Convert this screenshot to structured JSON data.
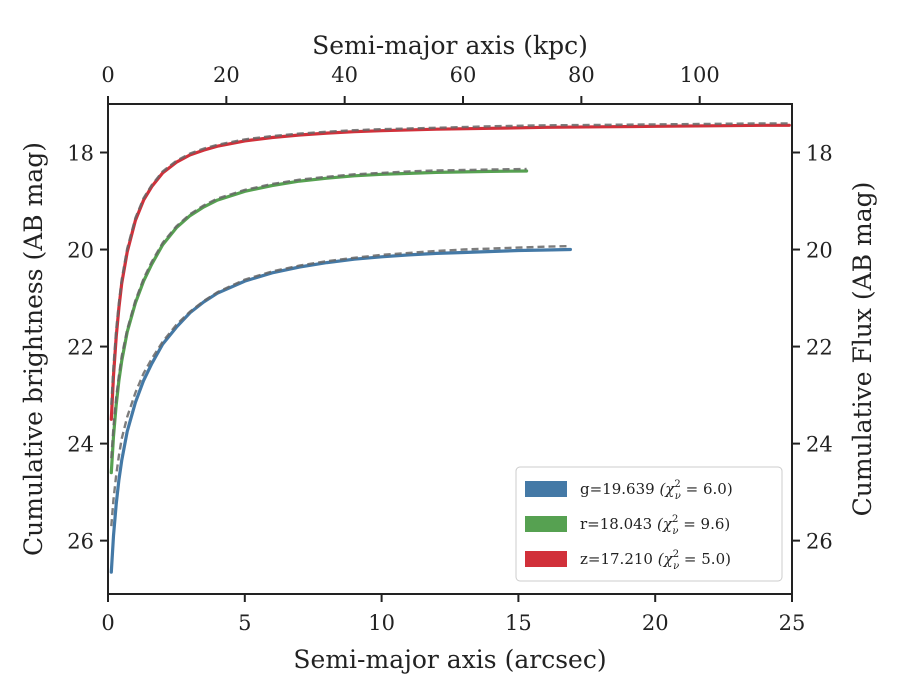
{
  "chart_data": {
    "type": "line",
    "xlabel": "Semi-major axis (arcsec)",
    "ylabel": "Cumulative brightness (AB mag)",
    "top_xlabel": "Semi-major axis (kpc)",
    "right_ylabel": "Cumulative Flux (AB mag)",
    "xlim": [
      0,
      25
    ],
    "ylim": [
      27.1,
      17.0
    ],
    "y_inverted": true,
    "top_xlim": [
      0,
      115.6
    ],
    "x_ticks": [
      0,
      5,
      10,
      15,
      20,
      25
    ],
    "x_tick_labels": [
      "0",
      "5",
      "10",
      "15",
      "20",
      "25"
    ],
    "y_ticks": [
      18,
      20,
      22,
      24,
      26
    ],
    "y_tick_labels": [
      "18",
      "20",
      "22",
      "24",
      "26"
    ],
    "top_x_ticks": [
      0,
      20,
      40,
      60,
      80,
      100
    ],
    "top_x_tick_labels": [
      "0",
      "20",
      "40",
      "60",
      "80",
      "100"
    ],
    "grid": false,
    "legend_placement": "lower-right",
    "series": [
      {
        "name": "g=19.639",
        "chi_label": "(χ",
        "chi_sub": "ν",
        "chi_sup": "2",
        "chi_value": " = 6.0)",
        "color": "#4479a6",
        "x": [
          0.12,
          0.2,
          0.3,
          0.4,
          0.5,
          0.7,
          1.0,
          1.3,
          1.6,
          2.0,
          2.5,
          3.0,
          3.5,
          4.0,
          5.0,
          6.0,
          7.0,
          8.0,
          9.0,
          10.0,
          11.0,
          12.0,
          13.0,
          14.0,
          15.0,
          16.0,
          16.9
        ],
        "y": [
          26.65,
          25.9,
          25.25,
          24.75,
          24.35,
          23.75,
          23.15,
          22.7,
          22.35,
          21.95,
          21.6,
          21.3,
          21.08,
          20.9,
          20.65,
          20.48,
          20.36,
          20.27,
          20.2,
          20.15,
          20.11,
          20.08,
          20.06,
          20.04,
          20.02,
          20.01,
          20.0
        ],
        "model_y": [
          25.7,
          25.15,
          24.65,
          24.25,
          23.9,
          23.45,
          22.95,
          22.55,
          22.25,
          21.9,
          21.55,
          21.28,
          21.06,
          20.88,
          20.62,
          20.45,
          20.33,
          20.24,
          20.17,
          20.11,
          20.07,
          20.03,
          20.0,
          19.98,
          19.96,
          19.94,
          19.93
        ]
      },
      {
        "name": "r=18.043",
        "chi_label": "(χ",
        "chi_sub": "ν",
        "chi_sup": "2",
        "chi_value": " = 9.6)",
        "color": "#56a151",
        "x": [
          0.12,
          0.2,
          0.3,
          0.4,
          0.5,
          0.7,
          1.0,
          1.3,
          1.6,
          2.0,
          2.5,
          3.0,
          3.5,
          4.0,
          5.0,
          6.0,
          7.0,
          8.0,
          9.0,
          10.0,
          11.0,
          12.0,
          13.0,
          14.0,
          15.3
        ],
        "y": [
          24.6,
          23.85,
          23.2,
          22.7,
          22.3,
          21.7,
          21.1,
          20.65,
          20.3,
          19.9,
          19.55,
          19.3,
          19.12,
          18.98,
          18.8,
          18.68,
          18.59,
          18.53,
          18.48,
          18.45,
          18.43,
          18.41,
          18.4,
          18.39,
          18.38
        ],
        "model_y": [
          24.3,
          23.65,
          23.05,
          22.6,
          22.2,
          21.65,
          21.05,
          20.6,
          20.25,
          19.86,
          19.52,
          19.27,
          19.09,
          18.95,
          18.77,
          18.65,
          18.56,
          18.5,
          18.45,
          18.42,
          18.39,
          18.37,
          18.36,
          18.35,
          18.34
        ]
      },
      {
        "name": "z=17.210",
        "chi_label": "(χ",
        "chi_sub": "ν",
        "chi_sup": "2",
        "chi_value": " = 5.0)",
        "color": "#d1303a",
        "x": [
          0.12,
          0.2,
          0.3,
          0.4,
          0.5,
          0.7,
          1.0,
          1.3,
          1.6,
          2.0,
          2.5,
          3.0,
          3.5,
          4.0,
          5.0,
          6.0,
          7.0,
          8.0,
          9.0,
          10.0,
          12.0,
          14.0,
          16.0,
          18.0,
          20.0,
          22.0,
          24.0,
          24.9
        ],
        "y": [
          23.5,
          22.6,
          21.8,
          21.2,
          20.7,
          20.05,
          19.4,
          18.98,
          18.7,
          18.42,
          18.2,
          18.05,
          17.95,
          17.87,
          17.76,
          17.69,
          17.64,
          17.6,
          17.57,
          17.55,
          17.52,
          17.5,
          17.48,
          17.47,
          17.46,
          17.45,
          17.44,
          17.44
        ],
        "model_y": [
          23.2,
          22.4,
          21.65,
          21.1,
          20.62,
          19.98,
          19.35,
          18.94,
          18.67,
          18.39,
          18.17,
          18.02,
          17.92,
          17.84,
          17.73,
          17.66,
          17.61,
          17.57,
          17.54,
          17.52,
          17.49,
          17.46,
          17.44,
          17.43,
          17.42,
          17.41,
          17.4,
          17.4
        ]
      }
    ]
  }
}
